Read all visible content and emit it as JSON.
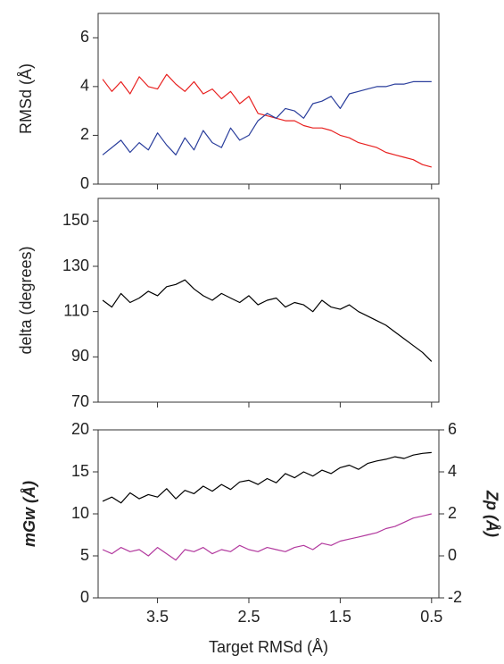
{
  "chart_data": [
    {
      "type": "line",
      "ylabel": "RMSd (Å)",
      "x": [
        4.1,
        4.0,
        3.9,
        3.8,
        3.7,
        3.6,
        3.5,
        3.4,
        3.3,
        3.2,
        3.1,
        3.0,
        2.9,
        2.8,
        2.7,
        2.6,
        2.5,
        2.4,
        2.3,
        2.2,
        2.1,
        2.0,
        1.9,
        1.8,
        1.7,
        1.6,
        1.5,
        1.4,
        1.3,
        1.2,
        1.1,
        1.0,
        0.9,
        0.8,
        0.7,
        0.6,
        0.5
      ],
      "series": [
        {
          "color": "#e8201f",
          "values": [
            4.3,
            3.8,
            4.2,
            3.7,
            4.4,
            4.0,
            3.9,
            4.5,
            4.1,
            3.8,
            4.2,
            3.7,
            3.9,
            3.5,
            3.8,
            3.3,
            3.6,
            2.9,
            2.8,
            2.7,
            2.6,
            2.6,
            2.4,
            2.3,
            2.3,
            2.2,
            2.0,
            1.9,
            1.7,
            1.6,
            1.5,
            1.3,
            1.2,
            1.1,
            1.0,
            0.8,
            0.7
          ]
        },
        {
          "color": "#2a3e9c",
          "values": [
            1.2,
            1.5,
            1.8,
            1.3,
            1.7,
            1.4,
            2.1,
            1.6,
            1.2,
            1.9,
            1.4,
            2.2,
            1.7,
            1.5,
            2.3,
            1.8,
            2.0,
            2.6,
            2.9,
            2.7,
            3.1,
            3.0,
            2.7,
            3.3,
            3.4,
            3.6,
            3.1,
            3.7,
            3.8,
            3.9,
            4.0,
            4.0,
            4.1,
            4.1,
            4.2,
            4.2,
            4.2
          ]
        }
      ],
      "xlim": [
        4.15,
        0.42
      ],
      "xticks": [
        3.5,
        2.5,
        1.5,
        0.5
      ],
      "ylim": [
        0,
        7
      ],
      "yticks": [
        0,
        2,
        4,
        6
      ]
    },
    {
      "type": "line",
      "ylabel": "delta (degrees)",
      "x": [
        4.1,
        4.0,
        3.9,
        3.8,
        3.7,
        3.6,
        3.5,
        3.4,
        3.3,
        3.2,
        3.1,
        3.0,
        2.9,
        2.8,
        2.7,
        2.6,
        2.5,
        2.4,
        2.3,
        2.2,
        2.1,
        2.0,
        1.9,
        1.8,
        1.7,
        1.6,
        1.5,
        1.4,
        1.3,
        1.2,
        1.1,
        1.0,
        0.9,
        0.8,
        0.7,
        0.6,
        0.5
      ],
      "series": [
        {
          "color": "#000000",
          "values": [
            115,
            112,
            118,
            114,
            116,
            119,
            117,
            121,
            122,
            124,
            120,
            117,
            115,
            118,
            116,
            114,
            117,
            113,
            115,
            116,
            112,
            114,
            113,
            110,
            115,
            112,
            111,
            113,
            110,
            108,
            106,
            104,
            101,
            98,
            95,
            92,
            88
          ]
        }
      ],
      "xlim": [
        4.15,
        0.42
      ],
      "xticks": [
        3.5,
        2.5,
        1.5,
        0.5
      ],
      "ylim": [
        70,
        160
      ],
      "yticks": [
        70,
        90,
        110,
        130,
        150
      ]
    },
    {
      "type": "line",
      "ylabel": "mGw (Å)",
      "y2label": "Zp (Å)",
      "xlabel": "Target RMSd (Å)",
      "x": [
        4.1,
        4.0,
        3.9,
        3.8,
        3.7,
        3.6,
        3.5,
        3.4,
        3.3,
        3.2,
        3.1,
        3.0,
        2.9,
        2.8,
        2.7,
        2.6,
        2.5,
        2.4,
        2.3,
        2.2,
        2.1,
        2.0,
        1.9,
        1.8,
        1.7,
        1.6,
        1.5,
        1.4,
        1.3,
        1.2,
        1.1,
        1.0,
        0.9,
        0.8,
        0.7,
        0.6,
        0.5
      ],
      "series": [
        {
          "color": "#000000",
          "values": [
            11.5,
            12,
            11.3,
            12.5,
            11.8,
            12.3,
            12,
            13,
            11.8,
            12.8,
            12.4,
            13.3,
            12.7,
            13.5,
            12.9,
            13.8,
            14,
            13.5,
            14.2,
            13.7,
            14.8,
            14.3,
            15,
            14.5,
            15.2,
            14.8,
            15.5,
            15.8,
            15.3,
            16,
            16.3,
            16.5,
            16.8,
            16.6,
            17,
            17.2,
            17.3
          ]
        },
        {
          "color": "#b2399e",
          "axis": "y2",
          "values": [
            0.3,
            0.1,
            0.4,
            0.2,
            0.3,
            0,
            0.4,
            0.1,
            -0.2,
            0.3,
            0.2,
            0.4,
            0.1,
            0.3,
            0.2,
            0.5,
            0.3,
            0.2,
            0.4,
            0.3,
            0.2,
            0.4,
            0.5,
            0.3,
            0.6,
            0.5,
            0.7,
            0.8,
            0.9,
            1.0,
            1.1,
            1.3,
            1.4,
            1.6,
            1.8,
            1.9,
            2.0
          ]
        }
      ],
      "xlim": [
        4.15,
        0.42
      ],
      "xticks": [
        3.5,
        2.5,
        1.5,
        0.5
      ],
      "ylim": [
        0,
        20
      ],
      "yticks": [
        0,
        5,
        10,
        15,
        20
      ],
      "y2lim": [
        -2,
        6
      ],
      "y2ticks": [
        -2,
        0,
        2,
        4,
        6
      ]
    }
  ]
}
